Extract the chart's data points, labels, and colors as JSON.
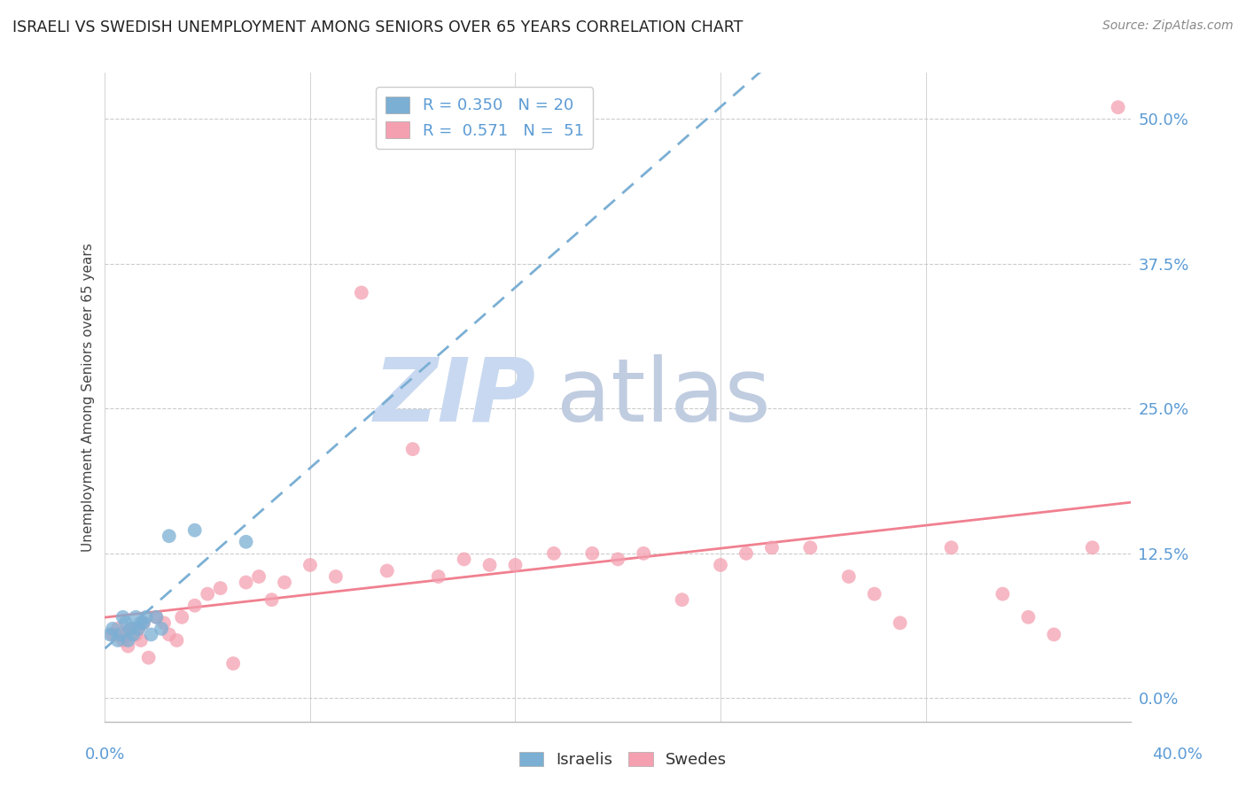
{
  "title": "ISRAELI VS SWEDISH UNEMPLOYMENT AMONG SENIORS OVER 65 YEARS CORRELATION CHART",
  "source": "Source: ZipAtlas.com",
  "ylabel": "Unemployment Among Seniors over 65 years",
  "ytick_labels": [
    "0.0%",
    "12.5%",
    "25.0%",
    "37.5%",
    "50.0%"
  ],
  "ytick_values": [
    0.0,
    12.5,
    25.0,
    37.5,
    50.0
  ],
  "xtick_labels": [
    "0.0%",
    "40.0%"
  ],
  "xmin": 0.0,
  "xmax": 40.0,
  "ymin": -2.0,
  "ymax": 54.0,
  "color_israelis": "#7bafd4",
  "color_swedes": "#f4a0b0",
  "line_color_israelis": "#7bafd4",
  "line_color_swedes": "#f08090",
  "watermark_zip_color": "#c8d8f0",
  "watermark_atlas_color": "#c0cce0",
  "israelis_x": [
    0.2,
    0.3,
    0.5,
    0.6,
    0.7,
    0.8,
    0.9,
    1.0,
    1.1,
    1.2,
    1.3,
    1.4,
    1.5,
    1.6,
    1.8,
    2.0,
    2.2,
    2.5,
    3.5,
    5.5
  ],
  "israelis_y": [
    5.5,
    6.0,
    5.0,
    5.5,
    7.0,
    6.5,
    5.0,
    6.0,
    5.5,
    7.0,
    6.0,
    6.5,
    6.5,
    7.0,
    5.5,
    7.0,
    6.0,
    14.0,
    14.5,
    13.5
  ],
  "swedes_x": [
    0.3,
    0.5,
    0.7,
    0.8,
    0.9,
    1.0,
    1.2,
    1.3,
    1.4,
    1.5,
    1.7,
    2.0,
    2.3,
    2.5,
    2.8,
    3.0,
    3.5,
    4.0,
    4.5,
    5.0,
    5.5,
    6.0,
    6.5,
    7.0,
    8.0,
    9.0,
    10.0,
    11.0,
    12.0,
    13.0,
    14.0,
    15.0,
    16.0,
    17.5,
    19.0,
    20.0,
    21.0,
    22.5,
    24.0,
    25.0,
    26.0,
    27.5,
    29.0,
    30.0,
    31.0,
    33.0,
    35.0,
    36.0,
    37.0,
    38.5,
    39.5
  ],
  "swedes_y": [
    5.5,
    6.0,
    5.0,
    5.5,
    4.5,
    6.0,
    5.5,
    6.0,
    5.0,
    6.5,
    3.5,
    7.0,
    6.5,
    5.5,
    5.0,
    7.0,
    8.0,
    9.0,
    9.5,
    3.0,
    10.0,
    10.5,
    8.5,
    10.0,
    11.5,
    10.5,
    35.0,
    11.0,
    21.5,
    10.5,
    12.0,
    11.5,
    11.5,
    12.5,
    12.5,
    12.0,
    12.5,
    8.5,
    11.5,
    12.5,
    13.0,
    13.0,
    10.5,
    9.0,
    6.5,
    13.0,
    9.0,
    7.0,
    5.5,
    13.0,
    51.0
  ]
}
